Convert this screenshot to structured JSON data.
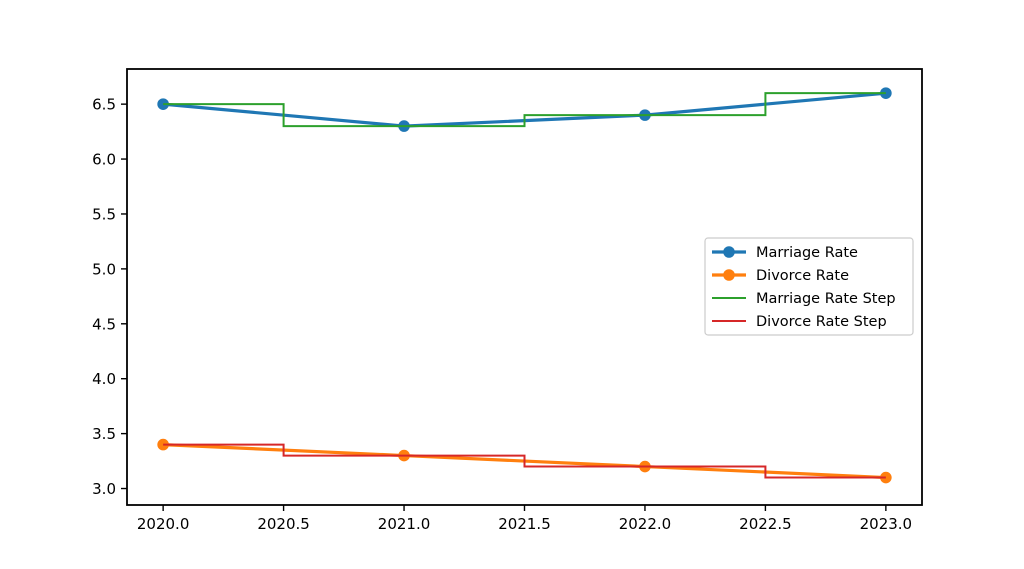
{
  "chart_data": {
    "type": "line",
    "title": "",
    "xlabel": "",
    "ylabel": "",
    "x": [
      2020,
      2021,
      2022,
      2023
    ],
    "series": [
      {
        "name": "Marriage Rate",
        "values": [
          6.5,
          6.3,
          6.4,
          6.6
        ],
        "color": "#1f77b4",
        "marker": "circle",
        "line_width": 3.2,
        "step": null
      },
      {
        "name": "Divorce Rate",
        "values": [
          3.4,
          3.3,
          3.2,
          3.1
        ],
        "color": "#ff7f0e",
        "marker": "circle",
        "line_width": 3.2,
        "step": null
      },
      {
        "name": "Marriage Rate Step",
        "values": [
          6.5,
          6.3,
          6.4,
          6.6
        ],
        "color": "#2ca02c",
        "marker": "none",
        "line_width": 2.0,
        "step": "mid"
      },
      {
        "name": "Divorce Rate Step",
        "values": [
          3.4,
          3.3,
          3.2,
          3.1
        ],
        "color": "#d62728",
        "marker": "none",
        "line_width": 2.0,
        "step": "mid"
      }
    ],
    "xlim": [
      2019.85,
      2023.15
    ],
    "ylim": [
      2.85,
      6.82
    ],
    "x_ticks": [
      "2020.0",
      "2020.5",
      "2021.0",
      "2021.5",
      "2022.0",
      "2022.5",
      "2023.0"
    ],
    "y_ticks": [
      "3.0",
      "3.5",
      "4.0",
      "4.5",
      "5.0",
      "5.5",
      "6.0",
      "6.5"
    ],
    "grid": false,
    "legend": {
      "position": "center-right",
      "entries": [
        "Marriage Rate",
        "Divorce Rate",
        "Marriage Rate Step",
        "Divorce Rate Step"
      ]
    },
    "axis_color": "#000000",
    "legend_border_color": "#cccccc",
    "background": "#ffffff"
  }
}
